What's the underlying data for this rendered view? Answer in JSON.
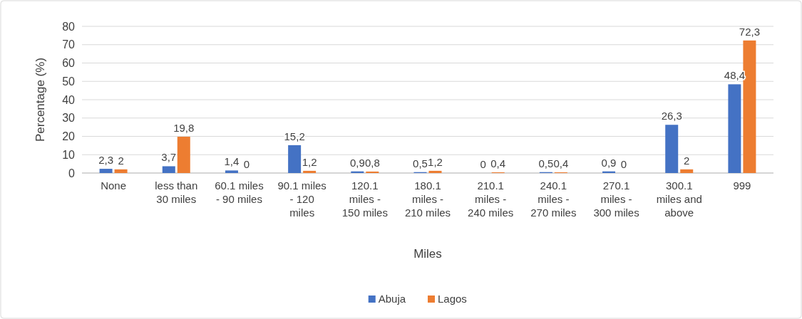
{
  "chart_data": {
    "type": "bar",
    "xlabel": "Miles",
    "ylabel": "Percentage (%)",
    "categories": [
      "None",
      "less than 30 miles",
      "60.1 miles - 90 miles",
      "90.1 miles - 120 miles",
      "120.1 miles - 150 miles",
      "180.1 miles - 210 miles",
      "210.1 miles - 240 miles",
      "240.1 miles - 270 miles",
      "270.1 miles - 300 miles",
      "300.1 miles and above",
      "999"
    ],
    "series": [
      {
        "name": "Abuja",
        "color": "#4472c4",
        "values": [
          2.3,
          3.7,
          1.4,
          15.2,
          0.9,
          0.5,
          0,
          0.5,
          0.9,
          26.3,
          48.4
        ],
        "value_labels": [
          "2,3",
          "3,7",
          "1,4",
          "15,2",
          "0,9",
          "0,5",
          "0",
          "0,5",
          "0,9",
          "26,3",
          "48,4"
        ]
      },
      {
        "name": "Lagos",
        "color": "#ed7d31",
        "values": [
          2,
          19.8,
          0,
          1.2,
          0.8,
          1.2,
          0.4,
          0.4,
          0,
          2,
          72.3
        ],
        "value_labels": [
          "2",
          "19,8",
          "0",
          "1,2",
          "0,8",
          "1,2",
          "0,4",
          "0,4",
          "0",
          "2",
          "72,3"
        ]
      }
    ],
    "ylim": [
      0,
      80
    ],
    "yticks": [
      0,
      10,
      20,
      30,
      40,
      50,
      60,
      70,
      80
    ],
    "grid": "y",
    "legend": "bottom"
  }
}
